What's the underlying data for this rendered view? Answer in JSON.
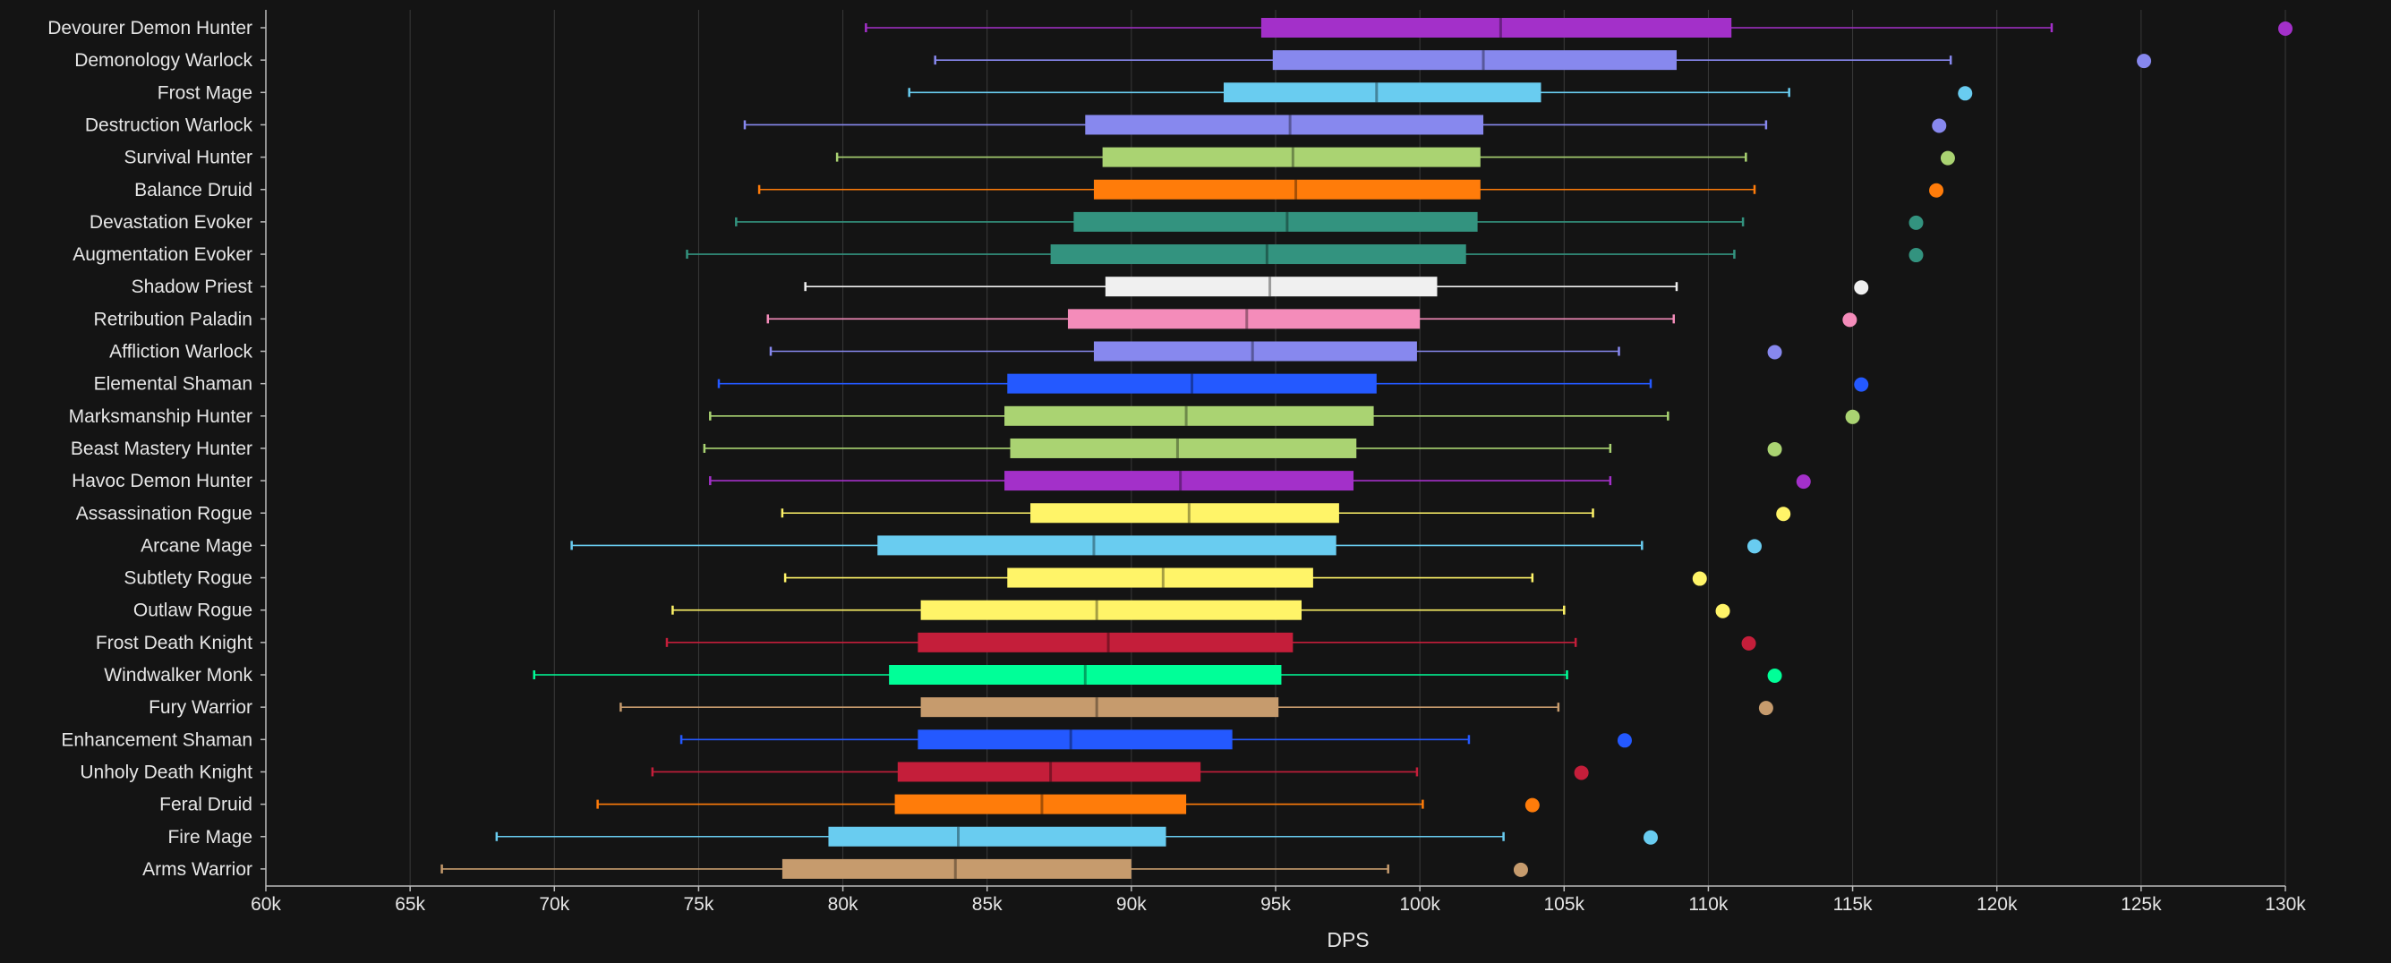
{
  "chart_data": {
    "type": "boxplot",
    "title": "",
    "xlabel": "DPS",
    "ylabel": "",
    "xlim": [
      60000,
      130000
    ],
    "x_ticks": [
      60000,
      65000,
      70000,
      75000,
      80000,
      85000,
      90000,
      95000,
      100000,
      105000,
      110000,
      115000,
      120000,
      125000,
      130000
    ],
    "x_tick_labels": [
      "60k",
      "65k",
      "70k",
      "75k",
      "80k",
      "85k",
      "90k",
      "95k",
      "100k",
      "105k",
      "110k",
      "115k",
      "120k",
      "125k",
      "130k"
    ],
    "grid": "vertical",
    "legend": "none",
    "series": [
      {
        "name": "Devourer Demon Hunter",
        "color": "#a330c9",
        "min": 80800,
        "q1": 94500,
        "median": 102800,
        "q3": 110800,
        "max": 121900,
        "outlier": 130000
      },
      {
        "name": "Demonology Warlock",
        "color": "#8788ee",
        "min": 83200,
        "q1": 94900,
        "median": 102200,
        "q3": 108900,
        "max": 118400,
        "outlier": 125100
      },
      {
        "name": "Frost Mage",
        "color": "#69ccf0",
        "min": 82300,
        "q1": 93200,
        "median": 98500,
        "q3": 104200,
        "max": 112800,
        "outlier": 118900
      },
      {
        "name": "Destruction Warlock",
        "color": "#8788ee",
        "min": 76600,
        "q1": 88400,
        "median": 95500,
        "q3": 102200,
        "max": 112000,
        "outlier": 118000
      },
      {
        "name": "Survival Hunter",
        "color": "#aad372",
        "min": 79800,
        "q1": 89000,
        "median": 95600,
        "q3": 102100,
        "max": 111300,
        "outlier": 118300
      },
      {
        "name": "Balance Druid",
        "color": "#ff7c0a",
        "min": 77100,
        "q1": 88700,
        "median": 95700,
        "q3": 102100,
        "max": 111600,
        "outlier": 117900
      },
      {
        "name": "Devastation Evoker",
        "color": "#33937f",
        "min": 76300,
        "q1": 88000,
        "median": 95400,
        "q3": 102000,
        "max": 111200,
        "outlier": 117200
      },
      {
        "name": "Augmentation Evoker",
        "color": "#33937f",
        "min": 74600,
        "q1": 87200,
        "median": 94700,
        "q3": 101600,
        "max": 110900,
        "outlier": 117200
      },
      {
        "name": "Shadow Priest",
        "color": "#f0f0f0",
        "min": 78700,
        "q1": 89100,
        "median": 94800,
        "q3": 100600,
        "max": 108900,
        "outlier": 115300
      },
      {
        "name": "Retribution Paladin",
        "color": "#f48cba",
        "min": 77400,
        "q1": 87800,
        "median": 94000,
        "q3": 100000,
        "max": 108800,
        "outlier": 114900
      },
      {
        "name": "Affliction Warlock",
        "color": "#8788ee",
        "min": 77500,
        "q1": 88700,
        "median": 94200,
        "q3": 99900,
        "max": 106900,
        "outlier": 112300
      },
      {
        "name": "Elemental Shaman",
        "color": "#2459ff",
        "min": 75700,
        "q1": 85700,
        "median": 92100,
        "q3": 98500,
        "max": 108000,
        "outlier": 115300
      },
      {
        "name": "Marksmanship Hunter",
        "color": "#aad372",
        "min": 75400,
        "q1": 85600,
        "median": 91900,
        "q3": 98400,
        "max": 108600,
        "outlier": 115000
      },
      {
        "name": "Beast Mastery Hunter",
        "color": "#aad372",
        "min": 75200,
        "q1": 85800,
        "median": 91600,
        "q3": 97800,
        "max": 106600,
        "outlier": 112300
      },
      {
        "name": "Havoc Demon Hunter",
        "color": "#a330c9",
        "min": 75400,
        "q1": 85600,
        "median": 91700,
        "q3": 97700,
        "max": 106600,
        "outlier": 113300
      },
      {
        "name": "Assassination Rogue",
        "color": "#fff468",
        "min": 77900,
        "q1": 86500,
        "median": 92000,
        "q3": 97200,
        "max": 106000,
        "outlier": 112600
      },
      {
        "name": "Arcane Mage",
        "color": "#69ccf0",
        "min": 70600,
        "q1": 81200,
        "median": 88700,
        "q3": 97100,
        "max": 107700,
        "outlier": 111600
      },
      {
        "name": "Subtlety Rogue",
        "color": "#fff468",
        "min": 78000,
        "q1": 85700,
        "median": 91100,
        "q3": 96300,
        "max": 103900,
        "outlier": 109700
      },
      {
        "name": "Outlaw Rogue",
        "color": "#fff468",
        "min": 74100,
        "q1": 82700,
        "median": 88800,
        "q3": 95900,
        "max": 105000,
        "outlier": 110500
      },
      {
        "name": "Frost Death Knight",
        "color": "#c41e3a",
        "min": 73900,
        "q1": 82600,
        "median": 89200,
        "q3": 95600,
        "max": 105400,
        "outlier": 111400
      },
      {
        "name": "Windwalker Monk",
        "color": "#00ff98",
        "min": 69300,
        "q1": 81600,
        "median": 88400,
        "q3": 95200,
        "max": 105100,
        "outlier": 112300
      },
      {
        "name": "Fury Warrior",
        "color": "#c69b6d",
        "min": 72300,
        "q1": 82700,
        "median": 88800,
        "q3": 95100,
        "max": 104800,
        "outlier": 112000
      },
      {
        "name": "Enhancement Shaman",
        "color": "#2459ff",
        "min": 74400,
        "q1": 82600,
        "median": 87900,
        "q3": 93500,
        "max": 101700,
        "outlier": 107100
      },
      {
        "name": "Unholy Death Knight",
        "color": "#c41e3a",
        "min": 73400,
        "q1": 81900,
        "median": 87200,
        "q3": 92400,
        "max": 99900,
        "outlier": 105600
      },
      {
        "name": "Feral Druid",
        "color": "#ff7c0a",
        "min": 71500,
        "q1": 81800,
        "median": 86900,
        "q3": 91900,
        "max": 100100,
        "outlier": 103900
      },
      {
        "name": "Fire Mage",
        "color": "#69ccf0",
        "min": 68000,
        "q1": 79500,
        "median": 84000,
        "q3": 91200,
        "max": 102900,
        "outlier": 108000
      },
      {
        "name": "Arms Warrior",
        "color": "#c69b6d",
        "min": 66100,
        "q1": 77900,
        "median": 83900,
        "q3": 90000,
        "max": 98900,
        "outlier": 103500
      }
    ]
  }
}
